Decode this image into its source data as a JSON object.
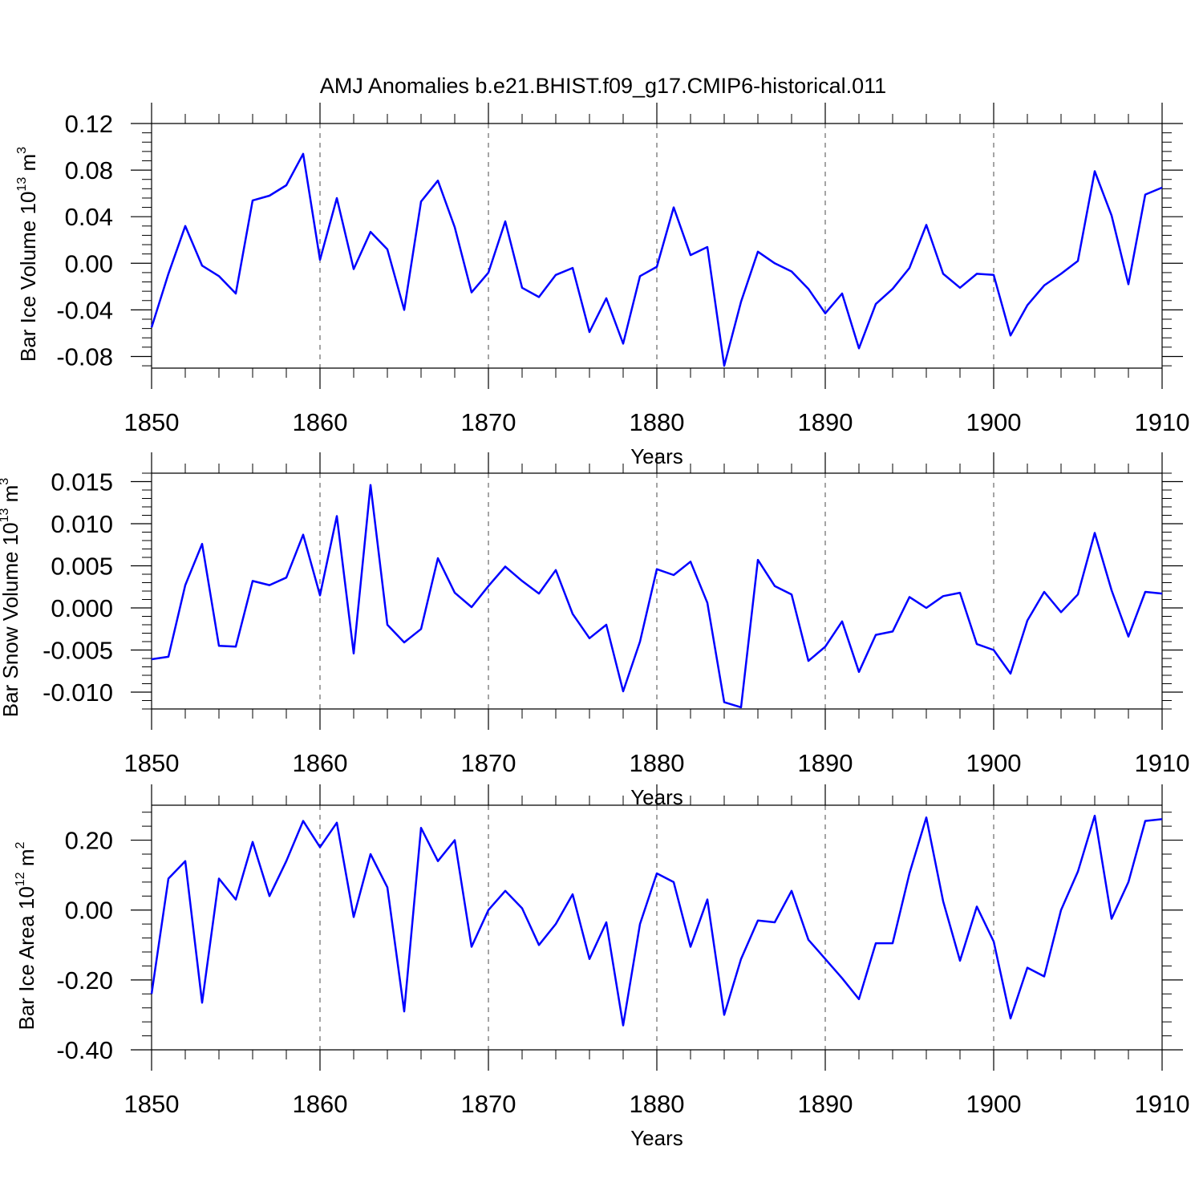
{
  "title": "AMJ Anomalies b.e21.BHIST.f09_g17.CMIP6-historical.011",
  "line_color": "#0000ff",
  "chart_data": [
    {
      "type": "line",
      "ylabel": "Bar Ice Volume 10",
      "ylabel_exp": "13",
      "ylabel_unit": " m",
      "ylabel_unit_exp": "3",
      "xlabel": "Years",
      "xlim": [
        1850,
        1910
      ],
      "ylim": [
        -0.09,
        0.12
      ],
      "yticks": [
        -0.08,
        -0.04,
        0.0,
        0.04,
        0.08,
        0.12
      ],
      "ytick_labels": [
        "-0.08",
        "-0.04",
        "0.00",
        "0.04",
        "0.08",
        "0.12"
      ],
      "xticks": [
        1850,
        1860,
        1870,
        1880,
        1890,
        1900,
        1910
      ],
      "xtick_labels": [
        "1850",
        "1860",
        "1870",
        "1880",
        "1890",
        "1900",
        "1910"
      ],
      "x_start": 1850,
      "values": [
        -0.055,
        -0.009,
        0.032,
        -0.002,
        -0.011,
        -0.026,
        0.054,
        0.058,
        0.067,
        0.094,
        0.003,
        0.056,
        -0.005,
        0.027,
        0.012,
        -0.04,
        0.053,
        0.071,
        0.031,
        -0.025,
        -0.008,
        0.036,
        -0.021,
        -0.029,
        -0.01,
        -0.004,
        -0.059,
        -0.03,
        -0.069,
        -0.011,
        -0.003,
        0.048,
        0.007,
        0.014,
        -0.088,
        -0.033,
        0.01,
        0.0,
        -0.007,
        -0.022,
        -0.043,
        -0.026,
        -0.073,
        -0.035,
        -0.022,
        -0.004,
        0.033,
        -0.009,
        -0.021,
        -0.009,
        -0.01,
        -0.062,
        -0.036,
        -0.019,
        -0.009,
        0.002,
        0.079,
        0.041,
        -0.018,
        0.059,
        0.065
      ]
    },
    {
      "type": "line",
      "ylabel": "Bar Snow Volume 10",
      "ylabel_exp": "13",
      "ylabel_unit": " m",
      "ylabel_unit_exp": "3",
      "xlabel": "Years",
      "xlim": [
        1850,
        1910
      ],
      "ylim": [
        -0.012,
        0.016
      ],
      "yticks": [
        -0.01,
        -0.005,
        0.0,
        0.005,
        0.01,
        0.015
      ],
      "ytick_labels": [
        "-0.010",
        "-0.005",
        "0.000",
        "0.005",
        "0.010",
        "0.015"
      ],
      "xticks": [
        1850,
        1860,
        1870,
        1880,
        1890,
        1900,
        1910
      ],
      "xtick_labels": [
        "1850",
        "1860",
        "1870",
        "1880",
        "1890",
        "1900",
        "1910"
      ],
      "x_start": 1850,
      "values": [
        -0.0061,
        -0.0058,
        0.0027,
        0.0076,
        -0.0045,
        -0.0046,
        0.0032,
        0.0027,
        0.0036,
        0.0087,
        0.0015,
        0.0109,
        -0.0054,
        0.0146,
        -0.002,
        -0.0041,
        -0.0025,
        0.0059,
        0.0018,
        0.0001,
        0.0026,
        0.0049,
        0.0032,
        0.0017,
        0.0045,
        -0.0007,
        -0.0036,
        -0.002,
        -0.0099,
        -0.004,
        0.0046,
        0.0039,
        0.0055,
        0.0006,
        -0.0112,
        -0.0118,
        0.0057,
        0.0026,
        0.0016,
        -0.0063,
        -0.0046,
        -0.0016,
        -0.0076,
        -0.0032,
        -0.0028,
        0.0013,
        0.0,
        0.0014,
        0.0018,
        -0.0043,
        -0.005,
        -0.0078,
        -0.0015,
        0.0019,
        -0.0005,
        0.0016,
        0.0089,
        0.0021,
        -0.0034,
        0.0019,
        0.0017
      ]
    },
    {
      "type": "line",
      "ylabel": "Bar Ice Area 10",
      "ylabel_exp": "12",
      "ylabel_unit": " m",
      "ylabel_unit_exp": "2",
      "xlabel": "Years",
      "xlim": [
        1850,
        1910
      ],
      "ylim": [
        -0.4,
        0.3
      ],
      "yticks": [
        -0.4,
        -0.2,
        0.0,
        0.2
      ],
      "ytick_labels": [
        "-0.40",
        "-0.20",
        "0.00",
        "0.20"
      ],
      "xticks": [
        1850,
        1860,
        1870,
        1880,
        1890,
        1900,
        1910
      ],
      "xtick_labels": [
        "1850",
        "1860",
        "1870",
        "1880",
        "1890",
        "1900",
        "1910"
      ],
      "x_start": 1850,
      "values": [
        -0.24,
        0.09,
        0.14,
        -0.265,
        0.09,
        0.03,
        0.195,
        0.04,
        0.14,
        0.255,
        0.18,
        0.25,
        -0.02,
        0.16,
        0.065,
        -0.29,
        0.235,
        0.14,
        0.2,
        -0.105,
        0.0,
        0.055,
        0.005,
        -0.1,
        -0.04,
        0.045,
        -0.14,
        -0.035,
        -0.33,
        -0.04,
        0.105,
        0.08,
        -0.105,
        0.03,
        -0.3,
        -0.14,
        -0.03,
        -0.035,
        0.055,
        -0.085,
        -0.14,
        -0.195,
        -0.255,
        -0.095,
        -0.095,
        0.105,
        0.265,
        0.025,
        -0.145,
        0.01,
        -0.09,
        -0.31,
        -0.165,
        -0.19,
        0.0,
        0.11,
        0.27,
        -0.025,
        0.08,
        0.255,
        0.26
      ]
    }
  ]
}
